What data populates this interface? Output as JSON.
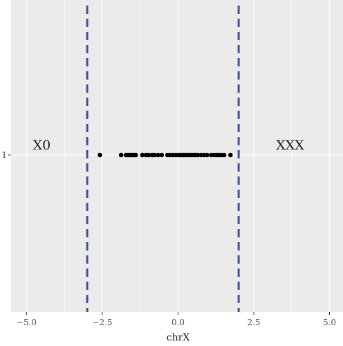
{
  "chart_data": {
    "type": "scatter",
    "title": "",
    "xlabel": "chrX",
    "ylabel": "",
    "xlim": [
      -5.0,
      5.0
    ],
    "x_ticks": [
      -5.0,
      -2.5,
      0.0,
      2.5,
      5.0
    ],
    "x_tick_labels": [
      "−5.0",
      "−2.5",
      "0.0",
      "2.5",
      "5.0"
    ],
    "y_categories": [
      "1"
    ],
    "grid": true,
    "panel_color": "#EBEBEB",
    "points": {
      "y": "1",
      "color": "#000000",
      "x": [
        -2.58,
        -1.88,
        -1.72,
        -1.65,
        -1.58,
        -1.52,
        -1.47,
        -1.4,
        -1.18,
        -1.06,
        -0.97,
        -0.86,
        -0.78,
        -0.66,
        -0.54,
        -0.35,
        -0.26,
        -0.16,
        -0.07,
        0.02,
        0.1,
        0.18,
        0.26,
        0.34,
        0.42,
        0.5,
        0.58,
        0.66,
        0.76,
        0.86,
        0.96,
        1.1,
        1.2,
        1.27,
        1.34,
        1.43,
        1.52,
        1.73
      ]
    },
    "thresholds": [
      {
        "x": -3.0,
        "color": "#3F4E9E",
        "style": "dashed"
      },
      {
        "x": 2.0,
        "color": "#3F4E9E",
        "style": "dashed"
      }
    ],
    "annotations": [
      {
        "text": "X0",
        "x": -4.5,
        "y": "1"
      },
      {
        "text": "XXX",
        "x": 3.7,
        "y": "1"
      }
    ]
  }
}
